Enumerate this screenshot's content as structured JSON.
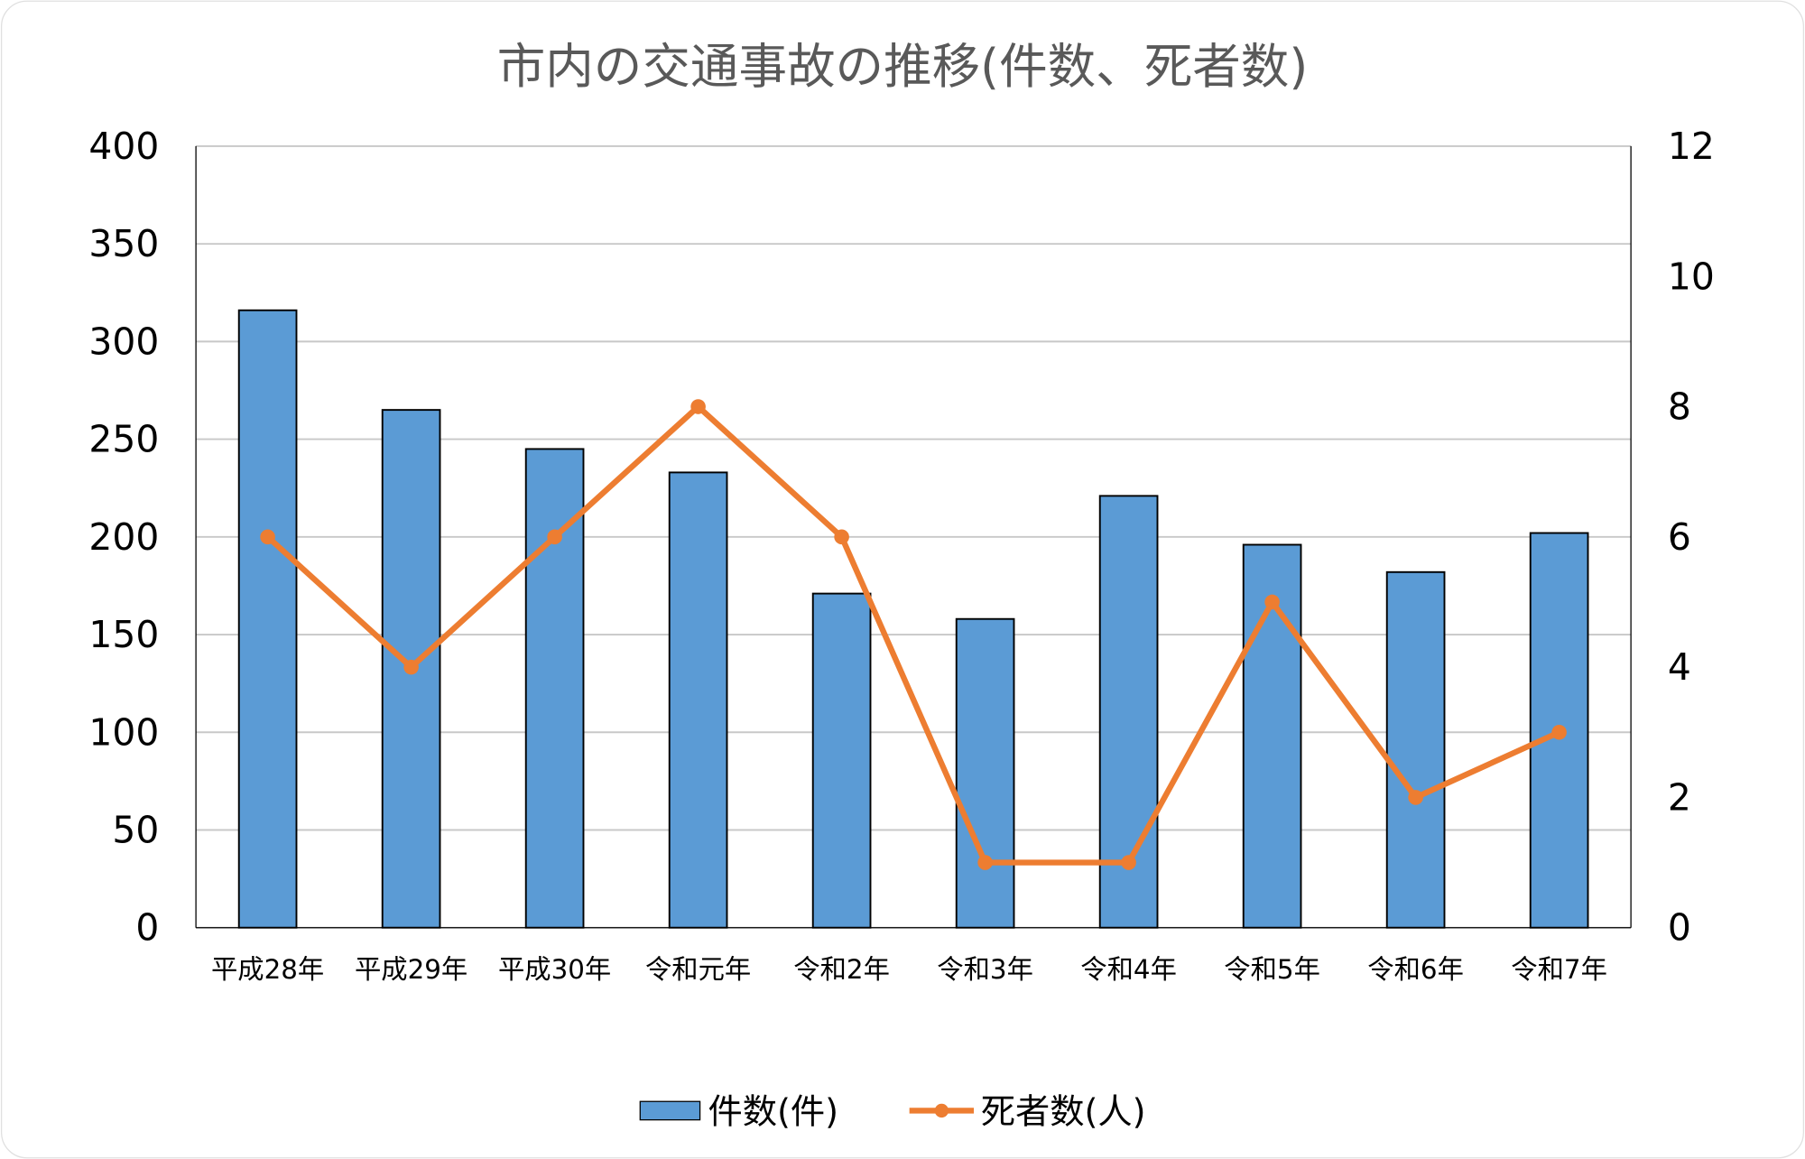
{
  "chart_data": {
    "type": "bar+line",
    "title": "市内の交通事故の推移(件数、死者数)",
    "categories": [
      "平成28年",
      "平成29年",
      "平成30年",
      "令和元年",
      "令和2年",
      "令和3年",
      "令和4年",
      "令和5年",
      "令和6年",
      "令和7年"
    ],
    "series": [
      {
        "name": "件数(件)",
        "type": "bar",
        "axis": "left",
        "color": "#5b9bd5",
        "values": [
          316,
          265,
          245,
          233,
          171,
          158,
          221,
          196,
          182,
          202
        ]
      },
      {
        "name": "死者数(人)",
        "type": "line",
        "axis": "right",
        "color": "#ed7d31",
        "values": [
          6,
          4,
          6,
          8,
          6,
          1,
          1,
          5,
          2,
          3
        ]
      }
    ],
    "ylim_left": [
      0,
      400
    ],
    "yticks_left": [
      "0",
      "50",
      "100",
      "150",
      "200",
      "250",
      "300",
      "350",
      "400"
    ],
    "ylim_right": [
      0,
      12
    ],
    "yticks_right": [
      "0",
      "2",
      "4",
      "6",
      "8",
      "10",
      "12"
    ],
    "grid": true,
    "legend": "bottom"
  }
}
